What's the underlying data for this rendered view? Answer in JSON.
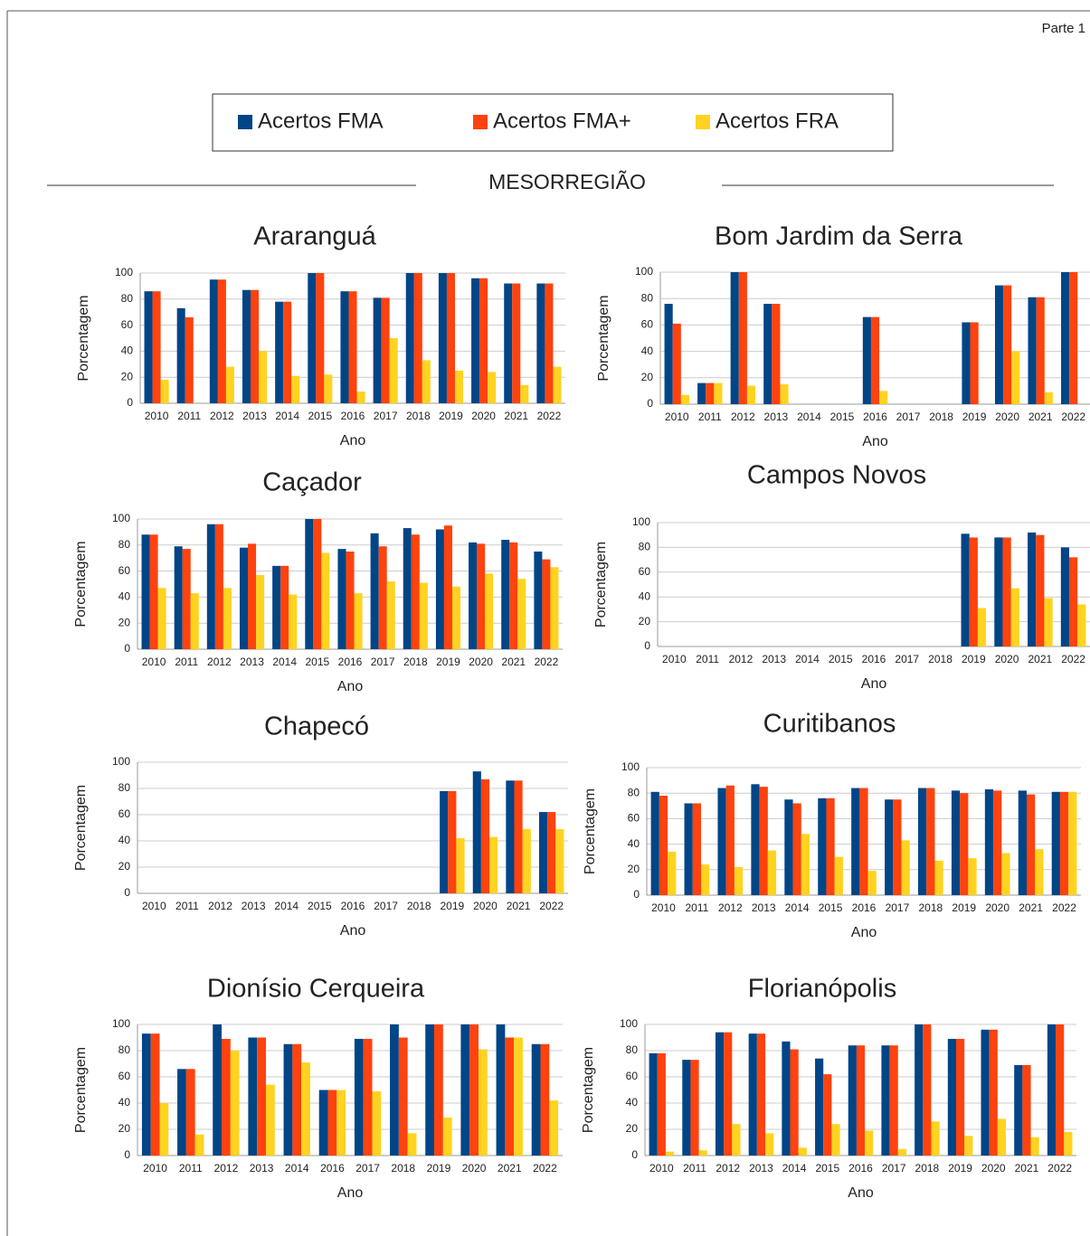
{
  "page": {
    "part": "Parte 1",
    "section": "MESORREGIÃO"
  },
  "legend": [
    {
      "name": "Acertos FMA",
      "color": "#004586"
    },
    {
      "name": "Acertos FMA+",
      "color": "#ff420e"
    },
    {
      "name": "Acertos FRA",
      "color": "#ffd320"
    }
  ],
  "chart_data": [
    {
      "type": "bar",
      "title": "Araranguá",
      "xlabel": "Ano",
      "ylabel": "Porcentagem",
      "ylim": [
        0,
        100
      ],
      "yticks": [
        0,
        20,
        40,
        60,
        80,
        100
      ],
      "grid": true,
      "categories": [
        "2010",
        "2011",
        "2012",
        "2013",
        "2014",
        "2015",
        "2016",
        "2017",
        "2018",
        "2019",
        "2020",
        "2021",
        "2022"
      ],
      "series": [
        {
          "values": [
            86,
            73,
            95,
            87,
            78,
            100,
            86,
            81,
            100,
            100,
            96,
            92,
            92
          ]
        },
        {
          "values": [
            86,
            66,
            95,
            87,
            78,
            100,
            86,
            81,
            100,
            100,
            96,
            92,
            92
          ]
        },
        {
          "values": [
            18,
            0,
            28,
            40,
            21,
            22,
            9,
            50,
            33,
            25,
            24,
            14,
            28
          ]
        }
      ]
    },
    {
      "type": "bar",
      "title": "Bom Jardim da Serra",
      "xlabel": "Ano",
      "ylabel": "Porcentagem",
      "ylim": [
        0,
        100
      ],
      "yticks": [
        0,
        20,
        40,
        60,
        80,
        100
      ],
      "grid": true,
      "categories": [
        "2010",
        "2011",
        "2012",
        "2013",
        "2014",
        "2015",
        "2016",
        "2017",
        "2018",
        "2019",
        "2020",
        "2021",
        "2022"
      ],
      "series": [
        {
          "values": [
            76,
            16,
            100,
            76,
            null,
            null,
            66,
            null,
            null,
            62,
            90,
            81,
            100
          ]
        },
        {
          "values": [
            61,
            16,
            100,
            76,
            null,
            null,
            66,
            null,
            null,
            62,
            90,
            81,
            100
          ]
        },
        {
          "values": [
            7,
            16,
            14,
            15,
            null,
            null,
            10,
            null,
            null,
            0,
            40,
            9,
            0
          ]
        }
      ]
    },
    {
      "type": "bar",
      "title": "Caçador",
      "xlabel": "Ano",
      "ylabel": "Porcentagem",
      "ylim": [
        0,
        100
      ],
      "yticks": [
        0,
        20,
        40,
        60,
        80,
        100
      ],
      "grid": true,
      "categories": [
        "2010",
        "2011",
        "2012",
        "2013",
        "2014",
        "2015",
        "2016",
        "2017",
        "2018",
        "2019",
        "2020",
        "2021",
        "2022"
      ],
      "series": [
        {
          "values": [
            88,
            79,
            96,
            78,
            64,
            100,
            77,
            89,
            93,
            92,
            82,
            84,
            75
          ]
        },
        {
          "values": [
            88,
            77,
            96,
            81,
            64,
            100,
            75,
            79,
            88,
            95,
            81,
            82,
            69
          ]
        },
        {
          "values": [
            47,
            43,
            47,
            57,
            42,
            74,
            43,
            52,
            51,
            48,
            58,
            54,
            63
          ]
        }
      ]
    },
    {
      "type": "bar",
      "title": "Campos Novos",
      "xlabel": "Ano",
      "ylabel": "Porcentagem",
      "ylim": [
        0,
        100
      ],
      "yticks": [
        0,
        20,
        40,
        60,
        80,
        100
      ],
      "grid": true,
      "categories": [
        "2010",
        "2011",
        "2012",
        "2013",
        "2014",
        "2015",
        "2016",
        "2017",
        "2018",
        "2019",
        "2020",
        "2021",
        "2022"
      ],
      "series": [
        {
          "values": [
            null,
            null,
            null,
            null,
            null,
            null,
            null,
            null,
            null,
            91,
            88,
            92,
            80
          ]
        },
        {
          "values": [
            null,
            null,
            null,
            null,
            null,
            null,
            null,
            null,
            null,
            88,
            88,
            90,
            72
          ]
        },
        {
          "values": [
            null,
            null,
            null,
            null,
            null,
            null,
            null,
            null,
            null,
            31,
            47,
            39,
            34
          ]
        }
      ]
    },
    {
      "type": "bar",
      "title": "Chapecó",
      "xlabel": "Ano",
      "ylabel": "Porcentagem",
      "ylim": [
        0,
        100
      ],
      "yticks": [
        0,
        20,
        40,
        60,
        80,
        100
      ],
      "grid": true,
      "categories": [
        "2010",
        "2011",
        "2012",
        "2013",
        "2014",
        "2015",
        "2016",
        "2017",
        "2018",
        "2019",
        "2020",
        "2021",
        "2022"
      ],
      "series": [
        {
          "values": [
            null,
            null,
            null,
            null,
            null,
            null,
            null,
            null,
            null,
            78,
            93,
            86,
            62
          ]
        },
        {
          "values": [
            null,
            null,
            null,
            null,
            null,
            null,
            null,
            null,
            null,
            78,
            87,
            86,
            62
          ]
        },
        {
          "values": [
            null,
            null,
            null,
            null,
            null,
            null,
            null,
            null,
            null,
            42,
            43,
            49,
            49
          ]
        }
      ]
    },
    {
      "type": "bar",
      "title": "Curitibanos",
      "xlabel": "Ano",
      "ylabel": "Porcentagem",
      "ylim": [
        0,
        100
      ],
      "yticks": [
        0,
        20,
        40,
        60,
        80,
        100
      ],
      "grid": true,
      "categories": [
        "2010",
        "2011",
        "2012",
        "2013",
        "2014",
        "2015",
        "2016",
        "2017",
        "2018",
        "2019",
        "2020",
        "2021",
        "2022"
      ],
      "series": [
        {
          "values": [
            81,
            72,
            84,
            87,
            75,
            76,
            84,
            75,
            84,
            82,
            83,
            82,
            81
          ]
        },
        {
          "values": [
            78,
            72,
            86,
            85,
            72,
            76,
            84,
            75,
            84,
            80,
            82,
            79,
            81
          ]
        },
        {
          "values": [
            34,
            24,
            22,
            35,
            48,
            30,
            19,
            43,
            27,
            29,
            33,
            36,
            81
          ]
        }
      ]
    },
    {
      "type": "bar",
      "title": "Dionísio Cerqueira",
      "xlabel": "Ano",
      "ylabel": "Porcentagem",
      "ylim": [
        0,
        100
      ],
      "yticks": [
        0,
        20,
        40,
        60,
        80,
        100
      ],
      "grid": true,
      "categories": [
        "2010",
        "2011",
        "2012",
        "2013",
        "2014",
        "2016",
        "2017",
        "2018",
        "2019",
        "2020",
        "2021",
        "2022"
      ],
      "series": [
        {
          "values": [
            93,
            66,
            100,
            90,
            85,
            50,
            89,
            100,
            100,
            100,
            100,
            85
          ]
        },
        {
          "values": [
            93,
            66,
            89,
            90,
            85,
            50,
            89,
            90,
            100,
            100,
            90,
            85
          ]
        },
        {
          "values": [
            40,
            16,
            80,
            54,
            71,
            50,
            49,
            17,
            29,
            81,
            90,
            42
          ]
        }
      ]
    },
    {
      "type": "bar",
      "title": "Florianópolis",
      "xlabel": "Ano",
      "ylabel": "Porcentagem",
      "ylim": [
        0,
        100
      ],
      "yticks": [
        0,
        20,
        40,
        60,
        80,
        100
      ],
      "grid": true,
      "categories": [
        "2010",
        "2011",
        "2012",
        "2013",
        "2014",
        "2015",
        "2016",
        "2017",
        "2018",
        "2019",
        "2020",
        "2021",
        "2022"
      ],
      "series": [
        {
          "values": [
            78,
            73,
            94,
            93,
            87,
            74,
            84,
            84,
            100,
            89,
            96,
            69,
            100
          ]
        },
        {
          "values": [
            78,
            73,
            94,
            93,
            81,
            62,
            84,
            84,
            100,
            89,
            96,
            69,
            100
          ]
        },
        {
          "values": [
            3,
            4,
            24,
            17,
            6,
            24,
            19,
            5,
            26,
            15,
            28,
            14,
            18
          ]
        }
      ]
    }
  ]
}
